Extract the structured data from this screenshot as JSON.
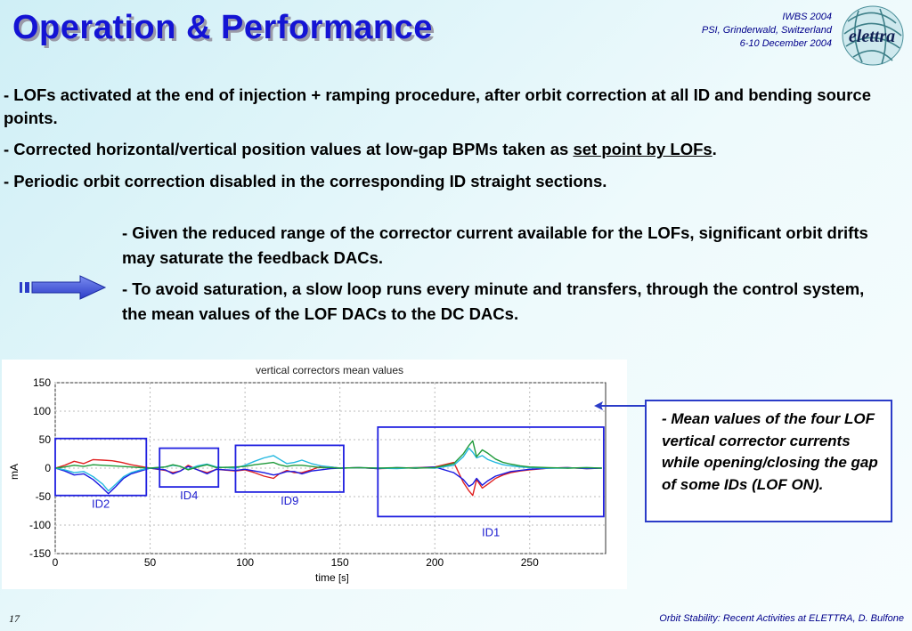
{
  "title": "Operation & Performance",
  "conference": {
    "line1": "IWBS 2004",
    "line2": "PSI, Grinderwald, Switzerland",
    "line3": "6-10 December 2004"
  },
  "logo_text": "elettra",
  "bullets": {
    "b1": "- LOFs activated at the end of injection + ramping procedure, after orbit correction at all ID and bending source points.",
    "b2_pre": "- Corrected horizontal/vertical position values at low-gap BPMs taken as ",
    "b2_link": "set point by LOFs",
    "b2_post": ".",
    "b3": "- Periodic orbit correction disabled in the corresponding ID straight sections."
  },
  "sub": {
    "s1": "- Given the reduced range of the corrector current available for the LOFs, significant orbit drifts may saturate the feedback DACs.",
    "s2": "- To avoid saturation, a slow loop runs every minute and transfers, through the control system, the mean values of the LOF DACs to the DC DACs."
  },
  "note": "- Mean values of the four LOF vertical corrector currents while opening/closing the gap of some IDs (LOF ON).",
  "slide_number": "17",
  "footer": "Orbit Stability: Recent Activities at ELETTRA, D. Bulfone",
  "colors": {
    "accent": "#1414d4",
    "box": "#2b3cc8"
  },
  "chart_data": {
    "type": "line",
    "title": "vertical correctors mean values",
    "xlabel": "time",
    "xlabel_unit": "[s]",
    "ylabel": "mA",
    "xlim": [
      0,
      290
    ],
    "ylim": [
      -150,
      150
    ],
    "xticks": [
      0,
      50,
      100,
      150,
      200,
      250
    ],
    "yticks": [
      150,
      100,
      50,
      0,
      -50,
      -100,
      -150
    ],
    "regions": [
      {
        "label": "ID2",
        "x0": 0,
        "x1": 48,
        "y0": -48,
        "y1": 52
      },
      {
        "label": "ID4",
        "x0": 55,
        "x1": 86,
        "y0": -33,
        "y1": 35
      },
      {
        "label": "ID9",
        "x0": 95,
        "x1": 152,
        "y0": -42,
        "y1": 40
      },
      {
        "label": "ID1",
        "x0": 170,
        "x1": 289,
        "y0": -85,
        "y1": 72
      }
    ],
    "series": [
      {
        "name": "red",
        "color": "#e02020",
        "x": [
          0,
          5,
          10,
          15,
          20,
          25,
          30,
          35,
          40,
          45,
          50,
          58,
          62,
          66,
          70,
          75,
          80,
          85,
          95,
          100,
          105,
          110,
          115,
          118,
          122,
          126,
          130,
          135,
          140,
          145,
          150,
          160,
          170,
          180,
          190,
          200,
          210,
          215,
          218,
          220,
          222,
          225,
          228,
          232,
          236,
          240,
          245,
          250,
          260,
          270,
          280,
          288
        ],
        "y": [
          0,
          5,
          12,
          8,
          15,
          14,
          13,
          10,
          6,
          3,
          0,
          -4,
          -8,
          -5,
          5,
          -3,
          -8,
          -2,
          -5,
          -3,
          -8,
          -14,
          -18,
          -10,
          -4,
          -8,
          -8,
          -3,
          3,
          2,
          0,
          1,
          -1,
          0,
          1,
          2,
          10,
          -25,
          -40,
          -48,
          -20,
          -35,
          -28,
          -18,
          -12,
          -8,
          -5,
          -3,
          0,
          1,
          -1,
          0
        ]
      },
      {
        "name": "blue",
        "color": "#1a1ae0",
        "x": [
          0,
          5,
          10,
          15,
          20,
          25,
          28,
          32,
          36,
          40,
          45,
          50,
          58,
          62,
          66,
          70,
          75,
          80,
          85,
          95,
          100,
          105,
          110,
          115,
          118,
          122,
          126,
          130,
          135,
          140,
          145,
          150,
          160,
          170,
          180,
          190,
          200,
          210,
          215,
          218,
          220,
          222,
          225,
          228,
          232,
          236,
          240,
          245,
          250,
          260,
          270,
          280,
          288
        ],
        "y": [
          0,
          -5,
          -12,
          -10,
          -20,
          -35,
          -45,
          -32,
          -18,
          -10,
          -5,
          0,
          -3,
          -10,
          -5,
          3,
          -3,
          -10,
          -2,
          -4,
          -2,
          -5,
          -8,
          -12,
          -10,
          -6,
          -6,
          -10,
          -5,
          -3,
          -1,
          0,
          1,
          -1,
          1,
          0,
          2,
          -8,
          -20,
          -32,
          -28,
          -18,
          -30,
          -22,
          -14,
          -10,
          -6,
          -4,
          -2,
          0,
          1,
          -1,
          0
        ]
      },
      {
        "name": "cyan",
        "color": "#24b8e0",
        "x": [
          0,
          5,
          10,
          15,
          20,
          25,
          28,
          32,
          36,
          40,
          45,
          50,
          58,
          62,
          66,
          70,
          75,
          80,
          85,
          95,
          100,
          105,
          110,
          115,
          118,
          122,
          126,
          130,
          135,
          140,
          145,
          150,
          160,
          170,
          180,
          190,
          200,
          210,
          215,
          218,
          220,
          222,
          225,
          228,
          232,
          236,
          240,
          245,
          250,
          260,
          270,
          280,
          288
        ],
        "y": [
          0,
          -3,
          -8,
          -6,
          -15,
          -28,
          -40,
          -28,
          -15,
          -8,
          -3,
          0,
          2,
          5,
          3,
          -2,
          4,
          7,
          2,
          0,
          5,
          12,
          18,
          22,
          16,
          8,
          10,
          14,
          8,
          4,
          2,
          0,
          1,
          0,
          -1,
          1,
          0,
          5,
          20,
          35,
          28,
          18,
          22,
          15,
          10,
          6,
          4,
          2,
          1,
          0,
          0,
          1,
          0
        ]
      },
      {
        "name": "green",
        "color": "#1f9a3a",
        "x": [
          0,
          5,
          10,
          15,
          20,
          25,
          30,
          35,
          40,
          45,
          50,
          58,
          62,
          66,
          70,
          75,
          80,
          85,
          95,
          100,
          105,
          110,
          115,
          118,
          122,
          126,
          130,
          135,
          140,
          145,
          150,
          160,
          170,
          180,
          190,
          200,
          210,
          215,
          218,
          220,
          222,
          225,
          228,
          232,
          236,
          240,
          245,
          250,
          260,
          270,
          280,
          288
        ],
        "y": [
          0,
          2,
          5,
          3,
          6,
          5,
          4,
          3,
          2,
          1,
          0,
          2,
          6,
          3,
          -3,
          2,
          6,
          1,
          2,
          3,
          6,
          8,
          10,
          6,
          3,
          5,
          5,
          3,
          1,
          1,
          0,
          1,
          0,
          1,
          0,
          1,
          8,
          25,
          40,
          48,
          20,
          32,
          26,
          16,
          10,
          7,
          4,
          2,
          1,
          0,
          1,
          0
        ]
      }
    ]
  }
}
